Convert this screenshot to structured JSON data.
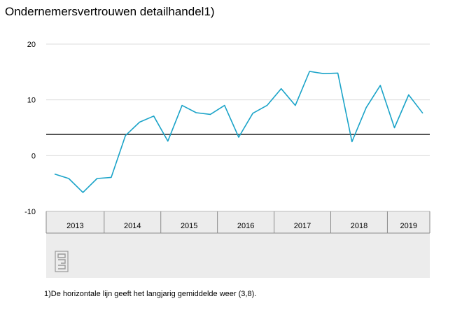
{
  "chart_data": {
    "type": "line",
    "title": "Ondernemersvertrouwen detailhandel1)",
    "xlabel": "",
    "ylabel": "",
    "ylim": [
      -10,
      20
    ],
    "yticks": [
      -10,
      0,
      10,
      20
    ],
    "year_labels": [
      "2013",
      "2014",
      "2015",
      "2016",
      "2017",
      "2018",
      "2019"
    ],
    "grid": true,
    "reference_line": {
      "value": 3.8
    },
    "colors": {
      "series": "#1aa3c8",
      "reference": "#555555",
      "axis_band": "#ececec",
      "grid": "#dcdcdc"
    },
    "series": [
      {
        "x": [
          "2013-Q1",
          "2013-Q2",
          "2013-Q3",
          "2013-Q4",
          "2014-Q1",
          "2014-Q2",
          "2014-Q3",
          "2014-Q4",
          "2015-Q1",
          "2015-Q2",
          "2015-Q3",
          "2015-Q4",
          "2016-Q1",
          "2016-Q2",
          "2016-Q3",
          "2016-Q4",
          "2017-Q1",
          "2017-Q2",
          "2017-Q3",
          "2017-Q4",
          "2018-Q1",
          "2018-Q2",
          "2018-Q3",
          "2018-Q4",
          "2019-Q1",
          "2019-Q2",
          "2019-Q3"
        ],
        "values": [
          -3.3,
          -4.1,
          -6.6,
          -4.1,
          -3.9,
          3.6,
          6.0,
          7.1,
          2.6,
          9.0,
          7.7,
          7.4,
          9.0,
          3.3,
          7.6,
          9.0,
          12.0,
          9.0,
          15.1,
          14.7,
          14.8,
          2.5,
          8.6,
          12.6,
          5.0,
          10.9,
          7.6
        ]
      }
    ]
  },
  "footnote": "1)De horizontale lijn geeft het langjarig gemiddelde weer (3,8).",
  "logo": {
    "name": "cbs-logo",
    "text": "cbs"
  }
}
